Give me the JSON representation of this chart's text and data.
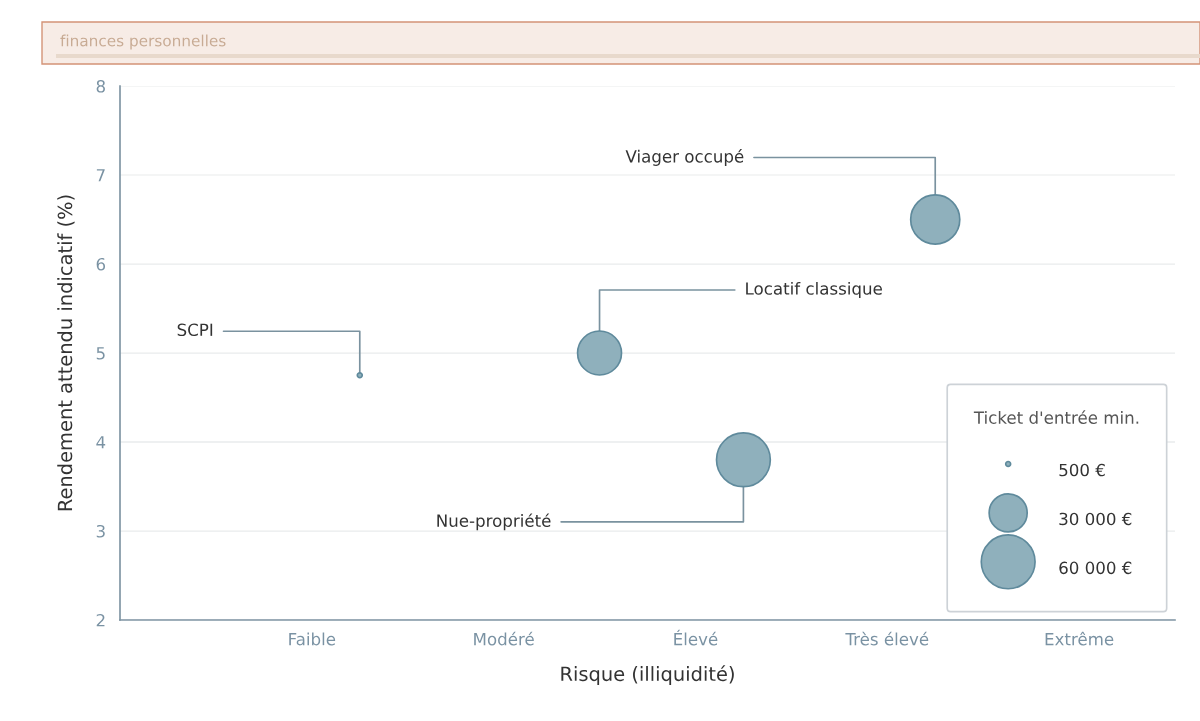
{
  "chart_data": {
    "type": "bubble",
    "subtitle": "finances personnelles",
    "xlabel": "Risque (illiquidité)",
    "ylabel": "Rendement attendu indicatif (%)",
    "legend_title": "Ticket d'entrée min.",
    "categories": [
      null,
      null,
      null,
      "Faible",
      null,
      null,
      null,
      "Modéré",
      null,
      null,
      null,
      "Élevé",
      null,
      null,
      null,
      "Très élevé",
      null,
      null,
      null,
      "Extrême",
      null
    ],
    "series": [
      {
        "name": "SCPI",
        "color": "#8fb0bc",
        "values": [
          null,
          null,
          null,
          null,
          4.75,
          null,
          null,
          null,
          null,
          null,
          null,
          null,
          null,
          null,
          null,
          null,
          null,
          null,
          null,
          null,
          null
        ],
        "sizes": [
          null,
          null,
          null,
          null,
          500,
          null,
          null,
          null,
          null,
          null,
          null,
          null,
          null,
          null,
          null,
          null,
          null,
          null,
          null,
          null,
          null
        ]
      },
      {
        "name": "Locatif classique",
        "color": "#8fb0bc",
        "values": [
          null,
          null,
          null,
          null,
          null,
          null,
          null,
          null,
          null,
          5.0,
          null,
          null,
          null,
          null,
          null,
          null,
          null,
          null,
          null,
          null,
          null
        ],
        "sizes": [
          null,
          null,
          null,
          null,
          null,
          null,
          null,
          null,
          null,
          40000,
          null,
          null,
          null,
          null,
          null,
          null,
          null,
          null,
          null,
          null,
          null
        ]
      },
      {
        "name": "Nue-propriété",
        "color": "#8fb0bc",
        "values": [
          null,
          null,
          null,
          null,
          null,
          null,
          null,
          null,
          null,
          null,
          null,
          null,
          3.8,
          null,
          null,
          null,
          null,
          null,
          null,
          null,
          null
        ],
        "sizes": [
          null,
          null,
          null,
          null,
          null,
          null,
          null,
          null,
          null,
          null,
          null,
          null,
          60000,
          null,
          null,
          null,
          null,
          null,
          null,
          null,
          null
        ]
      },
      {
        "name": "Viager occupé",
        "color": "#8fb0bc",
        "values": [
          null,
          null,
          null,
          null,
          null,
          null,
          null,
          null,
          null,
          null,
          null,
          null,
          null,
          null,
          null,
          null,
          6.5,
          null,
          null,
          null,
          null
        ],
        "sizes": [
          null,
          null,
          null,
          null,
          null,
          null,
          null,
          null,
          null,
          null,
          null,
          null,
          null,
          null,
          null,
          null,
          50000,
          null,
          null,
          null,
          null
        ]
      }
    ],
    "size_legend": [
      {
        "value": 500,
        "label": "500 €"
      },
      {
        "value": 30000,
        "label": "30 000 €"
      },
      {
        "value": 60000,
        "label": "60 000 €"
      }
    ],
    "ylim": [
      2,
      8
    ],
    "yticks": [
      2,
      3,
      4,
      5,
      6,
      7,
      8
    ],
    "grid": "y"
  }
}
